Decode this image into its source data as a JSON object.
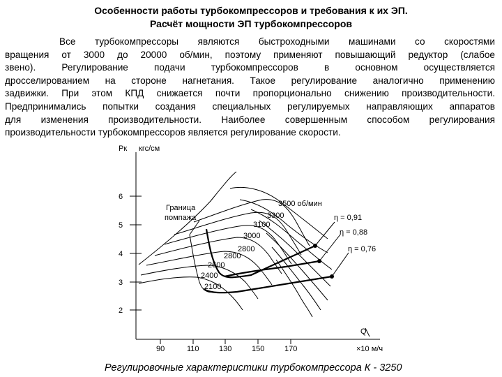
{
  "heading": {
    "line1": "Особенности работы турбокомпрессоров и требования к их ЭП.",
    "line2": "Расчёт мощности ЭП турбокомпрессоров"
  },
  "paragraph": {
    "lines": [
      "Все турбокомпрессоры являются быстроходными машинами со скоростями",
      "вращения от 3000 до 20000 об/мин, поэтому применяют повышающий редуктор (слабое",
      "звено). Регулирование подачи турбокомпрессоров в основном осуществляется",
      "дросселированием на стороне нагнетания. Такое регулирование аналогично применению",
      "задвижки. При этом КПД снижается почти пропорционально снижению производительности.",
      "Предпринимались попытки создания специальных регулируемых направляющих аппаратов",
      "для изменения производительности. Наиболее совершенным способом регулирования",
      "производительности турбокомпрессоров является регулирование скорости."
    ]
  },
  "caption": "Регулировочные характеристики турбокомпрессора К - 3250",
  "chart_data": {
    "type": "line",
    "ylabel": "Рк",
    "yunit": "кгс/см",
    "xlabel": "Q",
    "xunit": "×10 м/ч",
    "y_ticks": [
      "6",
      "5",
      "4",
      "3",
      "2"
    ],
    "x_ticks": [
      "90",
      "110",
      "130",
      "150",
      "170"
    ],
    "surge_label": [
      "Граница",
      "помпажа"
    ],
    "speed_labels": [
      "3500 об/мин",
      "3300",
      "3100",
      "3000",
      "2800",
      "2800",
      "2600",
      "2400",
      "2100"
    ],
    "efficiency_labels": [
      "η = 0,91",
      "η = 0,88",
      "η = 0,76"
    ],
    "colors": {
      "lines": "#000000",
      "background": "#ffffff"
    }
  }
}
